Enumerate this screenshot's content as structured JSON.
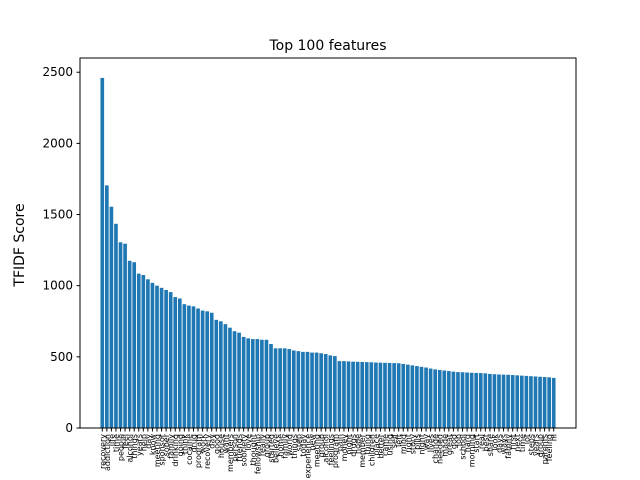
{
  "chart_data": {
    "type": "bar",
    "title": "Top 100 features",
    "xlabel": "",
    "ylabel": "TFIDF Score",
    "ylim": [
      0,
      2600
    ],
    "yticks": [
      0,
      500,
      1000,
      1500,
      2000,
      2500
    ],
    "grid": false,
    "bar_color": "#1f77b4",
    "categories": [
      "recovery",
      "addiction",
      "life",
      "time",
      "people",
      "feel",
      "alcohol",
      "things",
      "years",
      "help",
      "day",
      "know",
      "meeting",
      "sponsor",
      "sober",
      "family",
      "drinking",
      "going",
      "think",
      "cocaine",
      "drug",
      "program",
      "work",
      "recovery",
      "day",
      "good",
      "house",
      "want",
      "members",
      "person",
      "friends",
      "sobriety",
      "love",
      "thought",
      "fellowship",
      "really",
      "group",
      "started",
      "believe",
      "home",
      "family",
      "world",
      "things",
      "step",
      "today",
      "experience",
      "new",
      "meeting",
      "group",
      "alcohol",
      "feelings",
      "program",
      "pain",
      "money",
      "night",
      "drugs",
      "hope",
      "member",
      "thing",
      "children",
      "place",
      "better",
      "came",
      "using",
      "self",
      "left",
      "mind",
      "right",
      "story",
      "pills",
      "night",
      "way",
      "lives",
      "change",
      "needed",
      "made",
      "great",
      "god",
      "job",
      "school",
      "hard",
      "morning",
      "start",
      "real",
      "best",
      "share",
      "look",
      "days",
      "ways",
      "family",
      "first",
      "next",
      "time",
      "lot",
      "steps",
      "years",
      "group",
      "parents",
      "feeling",
      "hi"
    ],
    "values": [
      2460,
      1705,
      1555,
      1435,
      1305,
      1295,
      1175,
      1165,
      1085,
      1075,
      1045,
      1020,
      1000,
      985,
      970,
      955,
      920,
      910,
      870,
      860,
      855,
      840,
      825,
      820,
      810,
      760,
      750,
      730,
      705,
      680,
      670,
      640,
      630,
      625,
      625,
      620,
      620,
      590,
      560,
      560,
      560,
      555,
      545,
      540,
      535,
      535,
      530,
      530,
      525,
      520,
      510,
      505,
      470,
      470,
      468,
      466,
      465,
      464,
      463,
      462,
      460,
      459,
      458,
      457,
      456,
      455,
      450,
      445,
      440,
      435,
      430,
      425,
      418,
      412,
      408,
      404,
      400,
      396,
      393,
      392,
      390,
      388,
      387,
      386,
      384,
      380,
      378,
      376,
      375,
      374,
      372,
      370,
      368,
      366,
      364,
      362,
      360,
      358,
      356,
      352
    ]
  }
}
